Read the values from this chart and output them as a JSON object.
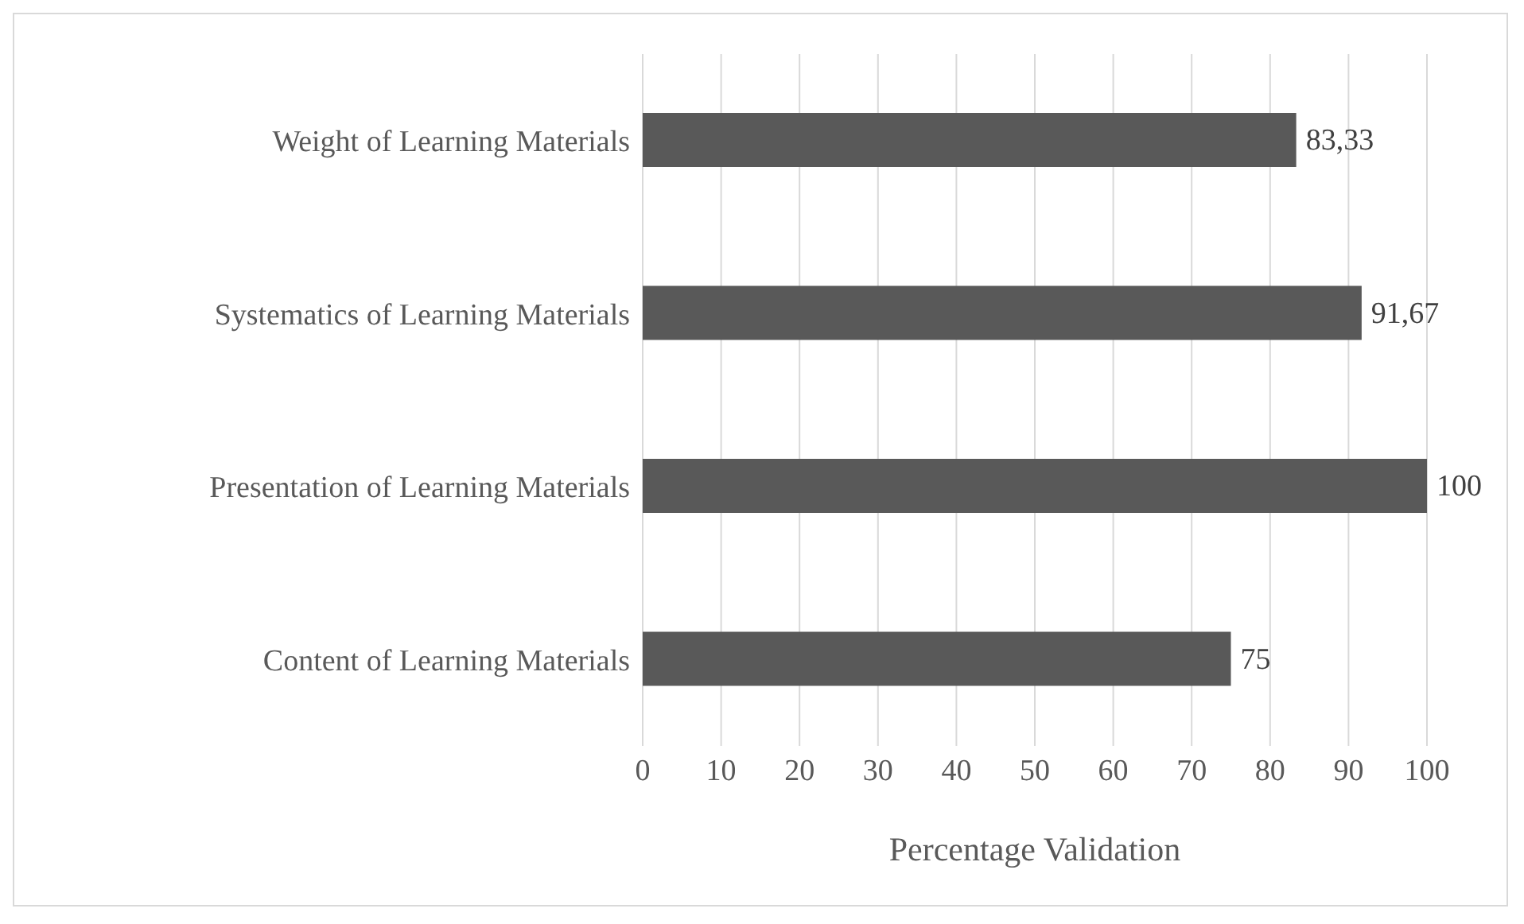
{
  "chart_data": {
    "type": "bar",
    "orientation": "horizontal",
    "xlabel": "Percentage Validation",
    "categories": [
      "Weight of Learning Materials",
      "Systematics of Learning Materials",
      "Presentation of Learning Materials",
      "Content of Learning Materials"
    ],
    "values": [
      83.33,
      91.67,
      100,
      75
    ],
    "value_labels": [
      "83,33",
      "91,67",
      "100",
      "75"
    ],
    "color": "#595959",
    "xlim": [
      0,
      100
    ],
    "xticks": [
      0,
      10,
      20,
      30,
      40,
      50,
      60,
      70,
      80,
      90,
      100
    ],
    "grid": "x"
  }
}
